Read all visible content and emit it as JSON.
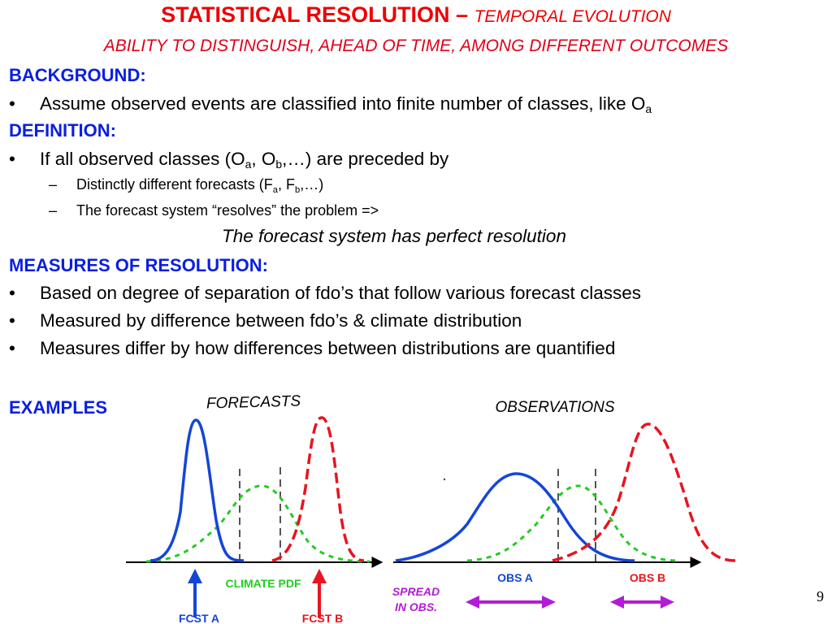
{
  "title": {
    "main": "STATISTICAL RESOLUTION – ",
    "secondary": "TEMPORAL EVOLUTION"
  },
  "subtitle": "ABILITY TO DISTINGUISH, AHEAD OF TIME, AMONG DIFFERENT OUTCOMES",
  "background": {
    "heading": "BACKGROUND:",
    "bullet_text": "Assume observed events are classified into finite number of classes, like O",
    "bullet_sub": "a"
  },
  "definition": {
    "heading": "DEFINITION:",
    "b1_pre": "If all observed classes (O",
    "b1_s1": "a",
    "b1_mid": ", O",
    "b1_s2": "b",
    "b1_post": ",…) are preceded by",
    "s1_pre": "Distinctly different forecasts (F",
    "s1_s1": "a",
    "s1_mid": ", F",
    "s1_s2": "b",
    "s1_post": ",…)",
    "s2": "The forecast system “resolves” the problem =>",
    "conclusion": "The forecast system has perfect resolution"
  },
  "measures": {
    "heading": "MEASURES OF RESOLUTION:",
    "bullets": [
      "Based on degree of separation of fdo’s that follow various forecast classes",
      "Measured by difference between fdo’s & climate distribution",
      "Measures differ by how differences between distributions are quantified"
    ]
  },
  "bullet_char": "•",
  "dash_char": "–",
  "examples": {
    "heading": "EXAMPLES",
    "forecasts_label": "FORECASTS",
    "observations_label": "OBSERVATIONS",
    "climate_pdf": "CLIMATE PDF",
    "fcst_a": "FCST A",
    "fcst_b": "FCST B",
    "obs_a": "OBS A",
    "obs_b": "OBS B",
    "spread_line1": "SPREAD",
    "spread_line2": "IN OBS."
  },
  "page_number": "9",
  "colors": {
    "title_red": "#ee0000",
    "heading_blue": "#0a1fe0",
    "curve_blue": "#1446d6",
    "curve_red": "#e8141e",
    "curve_green": "#22cc22",
    "spread_purple": "#b21cd6"
  }
}
